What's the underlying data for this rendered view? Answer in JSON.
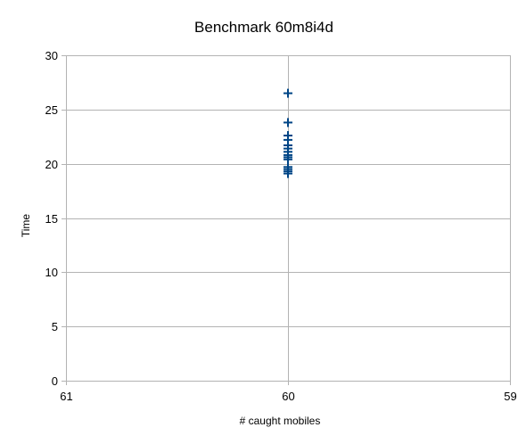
{
  "chart_data": {
    "type": "scatter",
    "title": "Benchmark 60m8i4d",
    "xlabel": "# caught mobiles",
    "ylabel": "Time",
    "x_ticks": [
      61,
      60,
      59
    ],
    "xlim": [
      61,
      59
    ],
    "ylim": [
      0,
      30
    ],
    "y_ticks": [
      0,
      5,
      10,
      15,
      20,
      25,
      30
    ],
    "grid": true,
    "marker": "cross",
    "marker_color": "#004586",
    "grid_color": "#b3b3b3",
    "series": [
      {
        "points": [
          {
            "x": 60,
            "y": 26.5
          },
          {
            "x": 60,
            "y": 23.8
          },
          {
            "x": 60,
            "y": 22.6
          },
          {
            "x": 60,
            "y": 22.2
          },
          {
            "x": 60,
            "y": 21.7
          },
          {
            "x": 60,
            "y": 21.4
          },
          {
            "x": 60,
            "y": 21.1
          },
          {
            "x": 60,
            "y": 20.8
          },
          {
            "x": 60,
            "y": 20.6
          },
          {
            "x": 60,
            "y": 20.4
          },
          {
            "x": 60,
            "y": 19.7
          },
          {
            "x": 60,
            "y": 19.5
          },
          {
            "x": 60,
            "y": 19.3
          },
          {
            "x": 60,
            "y": 19.1
          }
        ]
      }
    ]
  }
}
